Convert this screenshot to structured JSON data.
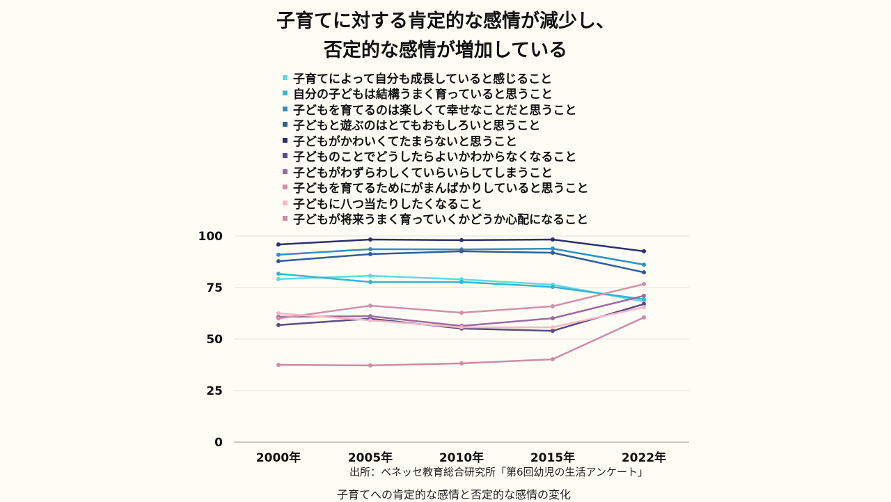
{
  "chart_data": {
    "type": "line",
    "title": [
      "子育てに対する肯定的な感情が減少し、",
      "否定的な感情が増加している"
    ],
    "categories": [
      "2000年",
      "2005年",
      "2010年",
      "2015年",
      "2022年"
    ],
    "xlabel": "",
    "ylabel": "",
    "ylim": [
      0,
      100
    ],
    "yticks": [
      0,
      25,
      50,
      75,
      100
    ],
    "grid": true,
    "legend_position": "top",
    "series": [
      {
        "name": "子育てによって自分も成長していると感じること",
        "color": "#5fd9e0",
        "values": [
          79.1,
          80.7,
          79.0,
          76.4,
          68.2
        ]
      },
      {
        "name": "自分の子どもは結構うまく育っていると思うこと",
        "color": "#34b5d6",
        "values": [
          81.7,
          77.7,
          77.7,
          75.3,
          69.3
        ]
      },
      {
        "name": "子どもを育てるのは楽しくて幸せなことだと思うこと",
        "color": "#2f8fc4",
        "values": [
          90.9,
          93.6,
          93.5,
          93.9,
          86.1
        ]
      },
      {
        "name": "子どもと遊ぶのはとてもおもしろいと思うこと",
        "color": "#2e5e9c",
        "values": [
          87.8,
          91.2,
          92.6,
          91.9,
          82.4
        ]
      },
      {
        "name": "子どもがかわいくてたまらないと思うこと",
        "color": "#2d2f6b",
        "values": [
          95.9,
          98.3,
          98.0,
          98.3,
          92.6
        ]
      },
      {
        "name": "子どものことでどうしたらよいかわからなくなること",
        "color": "#5a4a8a",
        "values": [
          56.8,
          59.9,
          55.1,
          54.0,
          67.0
        ]
      },
      {
        "name": "子どもがわずらわしくていらいらしてしまうこと",
        "color": "#9c6b9e",
        "values": [
          60.8,
          61.1,
          56.4,
          60.1,
          71.0
        ]
      },
      {
        "name": "子どもを育てるためにがまんばかりしていると思うこと",
        "color": "#d48fa8",
        "values": [
          60.0,
          66.2,
          62.8,
          65.9,
          76.7
        ]
      },
      {
        "name": "子どもに八つ当たりしたくなること",
        "color": "#f5b8c4",
        "values": [
          62.5,
          59.1,
          55.7,
          55.7,
          65.5
        ]
      },
      {
        "name": "子どもが将来うまく育っていくかどうか心配になること",
        "color": "#d08aa6",
        "values": [
          37.5,
          37.2,
          38.2,
          40.2,
          60.5
        ]
      }
    ],
    "source": "出所：ベネッセ教育総合研究所「第6回幼児の生活アンケート」",
    "caption": "子育てへの肯定的な感情と否定的な感情の変化"
  }
}
